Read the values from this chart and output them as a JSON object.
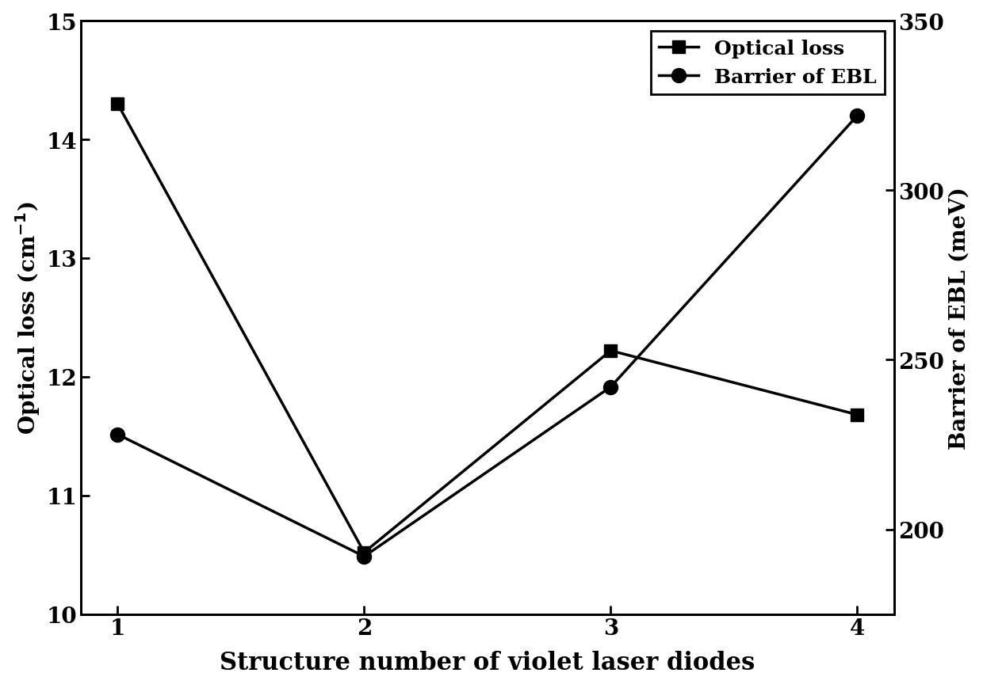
{
  "x": [
    1,
    2,
    3,
    4
  ],
  "optical_loss": [
    14.3,
    10.52,
    12.22,
    11.68
  ],
  "barrier_ebl": [
    228,
    192,
    242,
    322
  ],
  "optical_loss_color": "#000000",
  "barrier_ebl_color": "#000000",
  "xlabel": "Structure number of violet laser diodes",
  "ylabel_left": "Optical loss (cm$^{-1}$)",
  "ylabel_right": "Barrier of EBL (meV)",
  "ylim_left": [
    10,
    15
  ],
  "ylim_right": [
    175,
    350
  ],
  "yticks_left": [
    10,
    11,
    12,
    13,
    14,
    15
  ],
  "yticks_right": [
    200,
    250,
    300,
    350
  ],
  "xticks": [
    1,
    2,
    3,
    4
  ],
  "legend_optical": "Optical loss",
  "legend_barrier": "Barrier of EBL",
  "linewidth": 2.5,
  "markersize_square": 11,
  "markersize_circle": 13,
  "xlabel_fontsize": 22,
  "ylabel_fontsize": 20,
  "tick_fontsize": 20,
  "legend_fontsize": 18,
  "figure_width": 12.4,
  "figure_height": 8.7
}
